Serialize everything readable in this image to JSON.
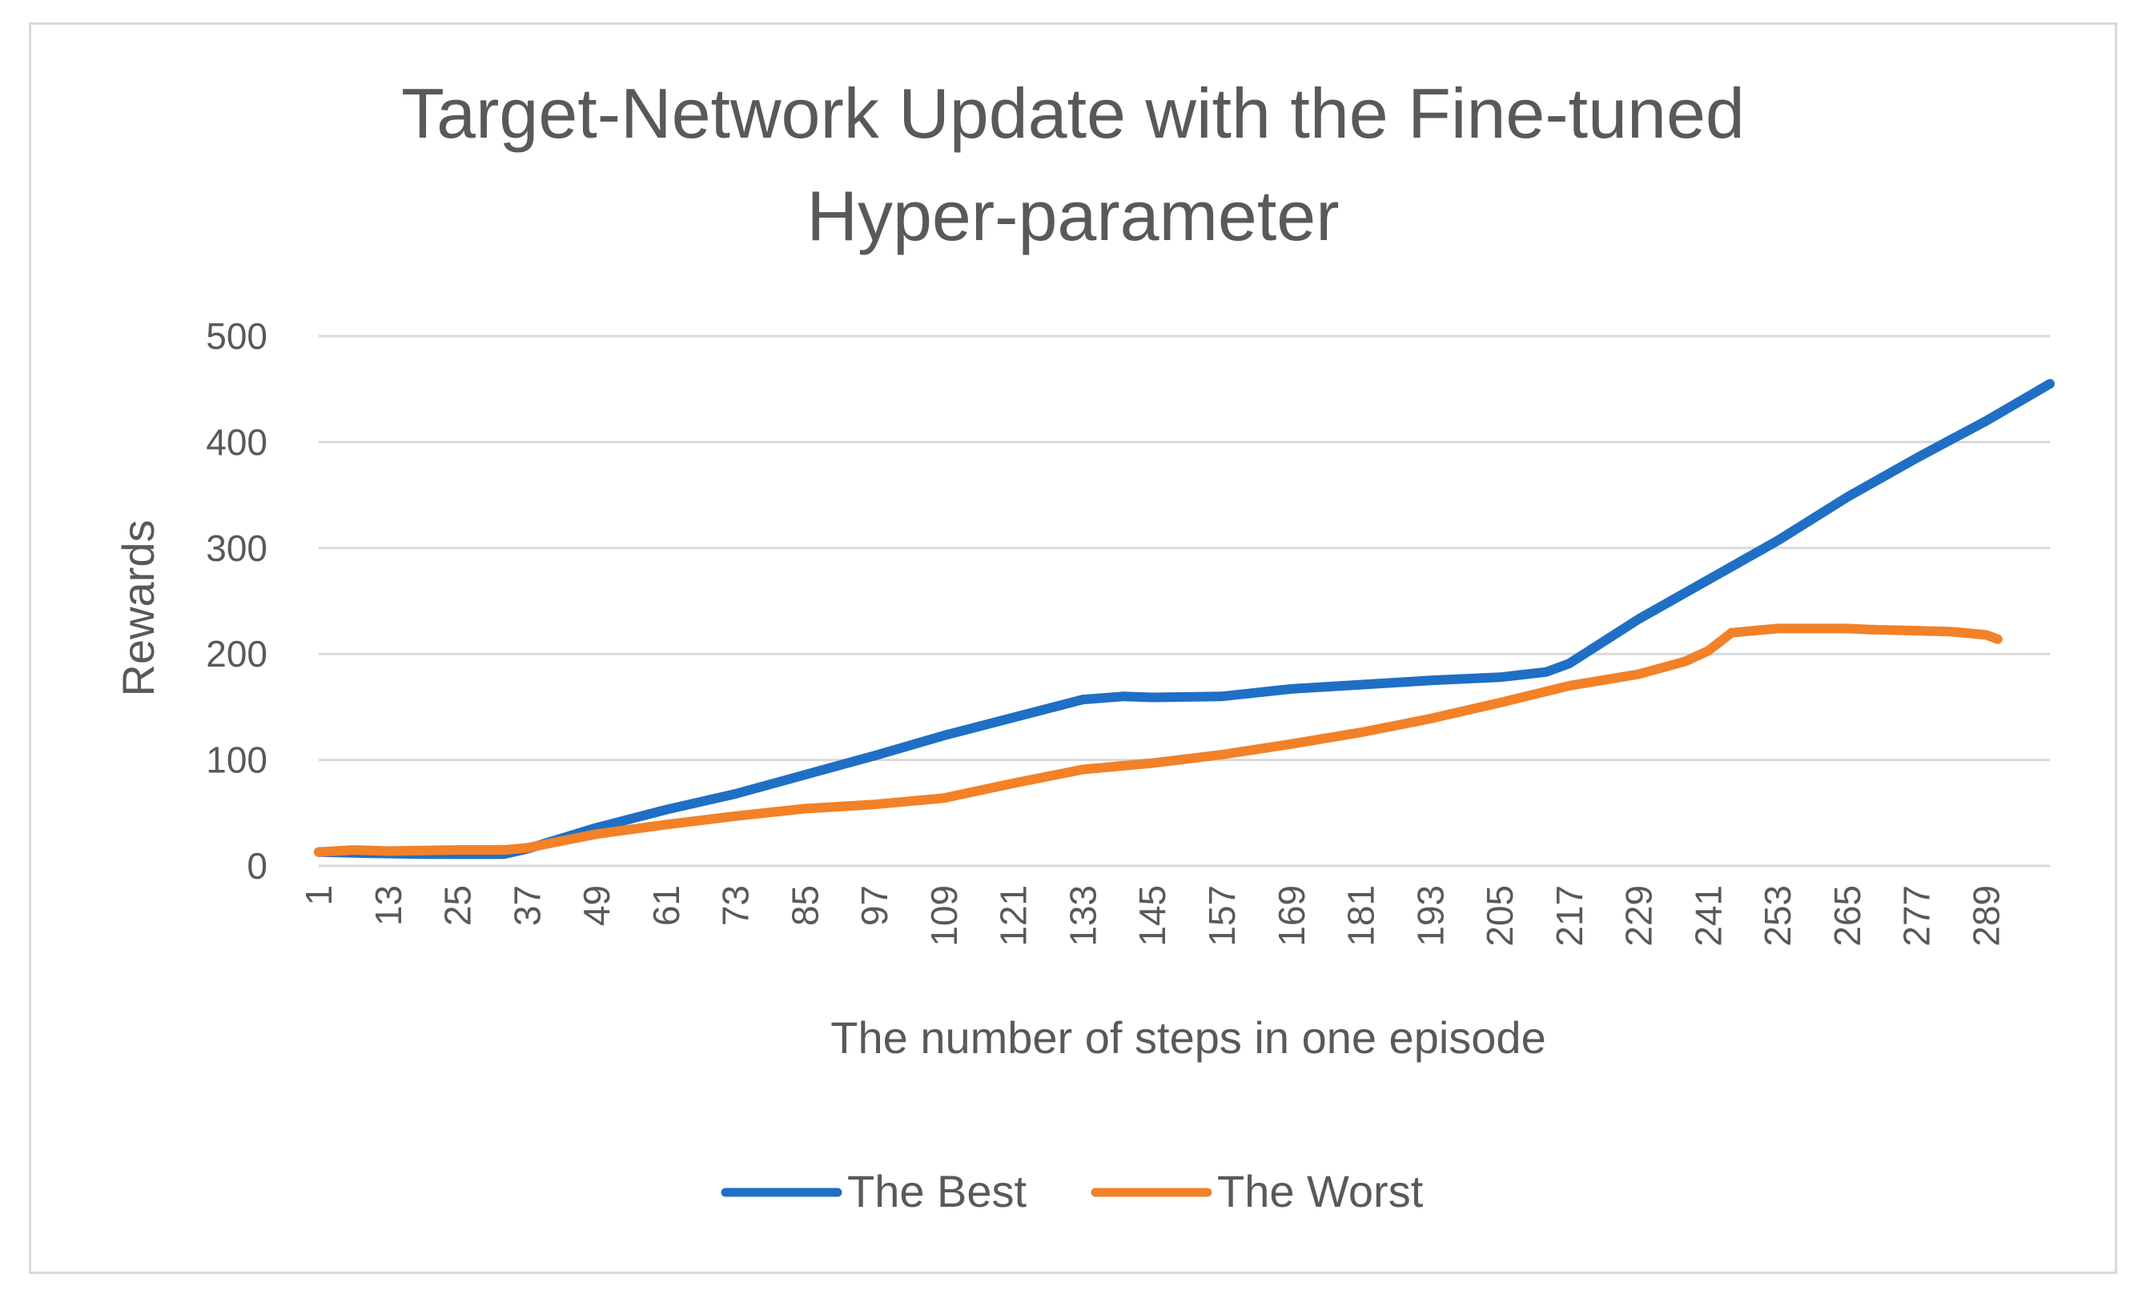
{
  "chart_data": {
    "type": "line",
    "title_lines": [
      "Target-Network Update with the Fine-tuned",
      "Hyper-parameter"
    ],
    "xlabel": "The number of steps in one episode",
    "ylabel": "Rewards",
    "ylim": [
      0,
      500
    ],
    "yticks": [
      0,
      100,
      200,
      300,
      400,
      500
    ],
    "xlim": [
      1,
      300
    ],
    "xticks": [
      1,
      13,
      25,
      37,
      49,
      61,
      73,
      85,
      97,
      109,
      121,
      133,
      145,
      157,
      169,
      181,
      193,
      205,
      217,
      229,
      241,
      253,
      265,
      277,
      289
    ],
    "grid": true,
    "legend_position": "bottom",
    "series": [
      {
        "name": "The Best",
        "color": "#1f6fc5",
        "x": [
          1,
          9,
          20,
          33,
          37,
          49,
          61,
          73,
          85,
          97,
          109,
          121,
          133,
          140,
          145,
          157,
          169,
          181,
          193,
          205,
          213,
          217,
          229,
          241,
          253,
          265,
          277,
          289,
          300
        ],
        "y": [
          13,
          12,
          11,
          11,
          16,
          36,
          53,
          68,
          86,
          104,
          123,
          140,
          157,
          160,
          159,
          160,
          167,
          171,
          175,
          178,
          183,
          191,
          233,
          270,
          307,
          348,
          385,
          420,
          455
        ]
      },
      {
        "name": "The Worst",
        "color": "#f28128",
        "x": [
          1,
          7,
          13,
          25,
          33,
          37,
          49,
          61,
          73,
          85,
          97,
          109,
          121,
          133,
          145,
          157,
          169,
          181,
          193,
          205,
          217,
          229,
          237,
          241,
          245,
          253,
          265,
          269,
          277,
          283,
          289,
          291
        ],
        "y": [
          13,
          15,
          14,
          15,
          15,
          17,
          30,
          39,
          47,
          54,
          58,
          64,
          78,
          91,
          97,
          105,
          115,
          126,
          139,
          154,
          170,
          181,
          193,
          203,
          220,
          224,
          224,
          223,
          222,
          221,
          218,
          214
        ]
      }
    ]
  }
}
